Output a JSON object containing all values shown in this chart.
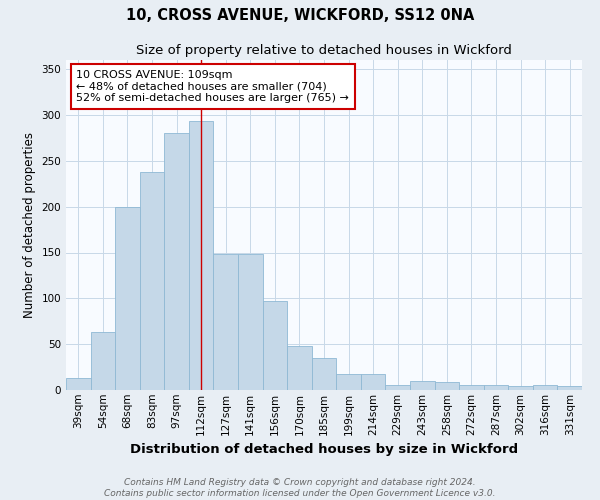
{
  "title1": "10, CROSS AVENUE, WICKFORD, SS12 0NA",
  "title2": "Size of property relative to detached houses in Wickford",
  "xlabel": "Distribution of detached houses by size in Wickford",
  "ylabel": "Number of detached properties",
  "categories": [
    "39sqm",
    "54sqm",
    "68sqm",
    "83sqm",
    "97sqm",
    "112sqm",
    "127sqm",
    "141sqm",
    "156sqm",
    "170sqm",
    "185sqm",
    "199sqm",
    "214sqm",
    "229sqm",
    "243sqm",
    "258sqm",
    "272sqm",
    "287sqm",
    "302sqm",
    "316sqm",
    "331sqm"
  ],
  "values": [
    13,
    63,
    200,
    238,
    280,
    293,
    148,
    148,
    97,
    48,
    35,
    18,
    18,
    5,
    10,
    9,
    6,
    5,
    4,
    5,
    4
  ],
  "bar_color": "#c5d8e8",
  "bar_edge_color": "#8fb8d4",
  "vline_x": 5,
  "annotation_text": "10 CROSS AVENUE: 109sqm\n← 48% of detached houses are smaller (704)\n52% of semi-detached houses are larger (765) →",
  "annotation_box_color": "white",
  "annotation_box_edge_color": "#cc0000",
  "vline_color": "#cc0000",
  "footnote1": "Contains HM Land Registry data © Crown copyright and database right 2024.",
  "footnote2": "Contains public sector information licensed under the Open Government Licence v3.0.",
  "ylim": [
    0,
    360
  ],
  "background_color": "#e8eef4",
  "plot_background_color": "#f8fbff",
  "title1_fontsize": 10.5,
  "title2_fontsize": 9.5,
  "xlabel_fontsize": 9.5,
  "ylabel_fontsize": 8.5,
  "tick_fontsize": 7.5,
  "annotation_fontsize": 8,
  "footnote_fontsize": 6.5
}
